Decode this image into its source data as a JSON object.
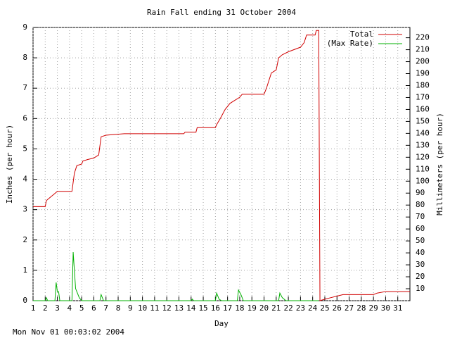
{
  "chart_data": {
    "type": "line",
    "title": "Rain Fall ending 31 October 2004",
    "x_label": "Day",
    "y_label": "Inches (per hour)",
    "y2_label": "Millimeters (per hour)",
    "timestamp": "Mon Nov 01 00:03:02 2004",
    "xlim": [
      1,
      32
    ],
    "xticks": [
      1,
      2,
      3,
      4,
      5,
      6,
      7,
      8,
      9,
      10,
      11,
      12,
      13,
      14,
      15,
      16,
      17,
      18,
      19,
      20,
      21,
      22,
      23,
      24,
      25,
      26,
      27,
      28,
      29,
      30,
      31
    ],
    "ylim": [
      0,
      9
    ],
    "yticks": [
      0,
      1,
      2,
      3,
      4,
      5,
      6,
      7,
      8,
      9
    ],
    "y2lim": [
      0,
      228.6
    ],
    "y2ticks": [
      10,
      20,
      30,
      40,
      50,
      60,
      70,
      80,
      90,
      100,
      110,
      120,
      130,
      140,
      150,
      160,
      170,
      180,
      190,
      200,
      210,
      220
    ],
    "grid": true,
    "legend": "top-right",
    "series": [
      {
        "name": "Total",
        "color": "#d00000",
        "x": [
          1,
          2.0,
          2.1,
          2.4,
          2.7,
          3.0,
          4.2,
          4.4,
          4.6,
          5.0,
          5.1,
          5.5,
          6.0,
          6.4,
          6.6,
          7.0,
          8.5,
          13.4,
          13.5,
          14.4,
          14.5,
          16.0,
          16.1,
          16.4,
          16.8,
          17.2,
          17.6,
          18.0,
          18.2,
          20.0,
          20.2,
          20.6,
          21.0,
          21.2,
          21.5,
          22.0,
          23.0,
          23.3,
          23.5,
          24.2,
          24.3,
          24.5,
          24.55,
          24.6,
          25.0,
          25.5,
          26.0,
          26.5,
          29.0,
          29.3,
          30.0,
          32
        ],
        "values": [
          3.1,
          3.1,
          3.3,
          3.4,
          3.5,
          3.6,
          3.6,
          4.2,
          4.45,
          4.5,
          4.6,
          4.65,
          4.7,
          4.8,
          5.4,
          5.45,
          5.5,
          5.5,
          5.55,
          5.55,
          5.7,
          5.7,
          5.8,
          6.0,
          6.3,
          6.5,
          6.6,
          6.7,
          6.8,
          6.8,
          7.0,
          7.5,
          7.6,
          8.0,
          8.1,
          8.2,
          8.35,
          8.5,
          8.75,
          8.75,
          8.9,
          8.9,
          4.4,
          0,
          0.05,
          0.1,
          0.15,
          0.2,
          0.2,
          0.25,
          0.3,
          0.3
        ]
      },
      {
        "name": "(Max Rate)",
        "color": "#00b000",
        "x": [
          1,
          2.0,
          2.1,
          2.2,
          2.8,
          2.9,
          3.0,
          3.1,
          3.2,
          4.2,
          4.3,
          4.4,
          4.5,
          4.8,
          5.0,
          6.5,
          6.6,
          6.8,
          14.0,
          14.1,
          14.2,
          16.0,
          16.1,
          16.3,
          16.5,
          17.8,
          17.9,
          18.1,
          18.3,
          21.2,
          21.3,
          21.5,
          21.8,
          24.5
        ],
        "values": [
          0,
          0,
          0.1,
          0,
          0,
          0.6,
          0.3,
          0.3,
          0,
          0,
          1.6,
          1.0,
          0.4,
          0.1,
          0,
          0,
          0.2,
          0,
          0,
          0.05,
          0,
          0,
          0.25,
          0.05,
          0,
          0,
          0.35,
          0.2,
          0,
          0,
          0.25,
          0.1,
          0,
          0
        ]
      }
    ]
  }
}
